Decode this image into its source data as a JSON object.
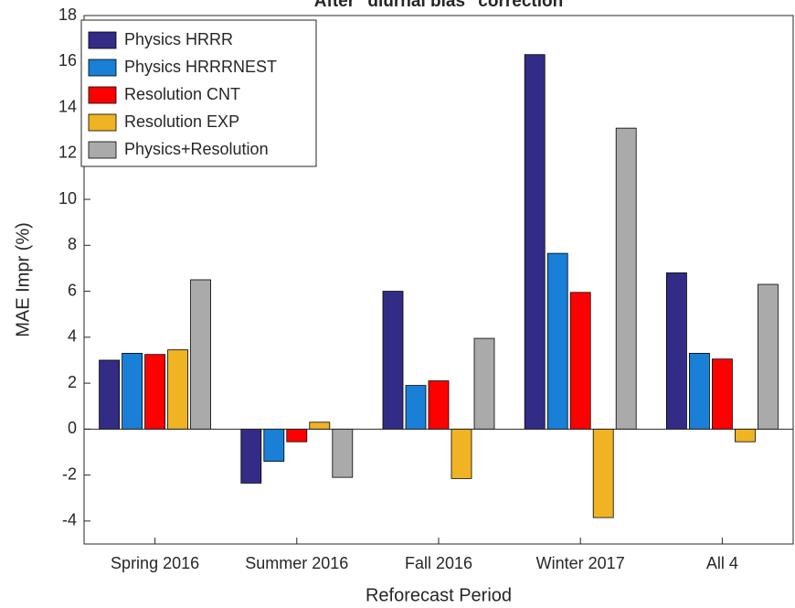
{
  "chart_data": {
    "type": "bar",
    "title": "After \"diurnal bias\" correction",
    "x_label": "Reforecast Period",
    "y_label": "MAE Impr (%)",
    "categories": [
      "Spring 2016",
      "Summer 2016",
      "Fall 2016",
      "Winter 2017",
      "All 4"
    ],
    "series": [
      {
        "name": "Physics HRRR",
        "color": "#332c86",
        "values": [
          3.0,
          -2.35,
          6.0,
          16.3,
          6.8
        ]
      },
      {
        "name": "Physics HRRRNEST",
        "color": "#1a7fd6",
        "values": [
          3.3,
          -1.4,
          1.9,
          7.65,
          3.3
        ]
      },
      {
        "name": "Resolution CNT",
        "color": "#ff0000",
        "values": [
          3.25,
          -0.55,
          2.1,
          5.95,
          3.05
        ]
      },
      {
        "name": "Resolution EXP",
        "color": "#f0b323",
        "values": [
          3.45,
          0.3,
          -2.15,
          -3.85,
          -0.55
        ]
      },
      {
        "name": "Physics+Resolution",
        "color": "#aaaaaa",
        "values": [
          6.5,
          -2.1,
          3.95,
          13.1,
          6.3
        ]
      }
    ],
    "ylim": [
      -5,
      18
    ],
    "yticks": [
      -4,
      -2,
      0,
      2,
      4,
      6,
      8,
      10,
      12,
      14,
      16,
      18
    ],
    "grid": false,
    "legend": "top-left"
  }
}
